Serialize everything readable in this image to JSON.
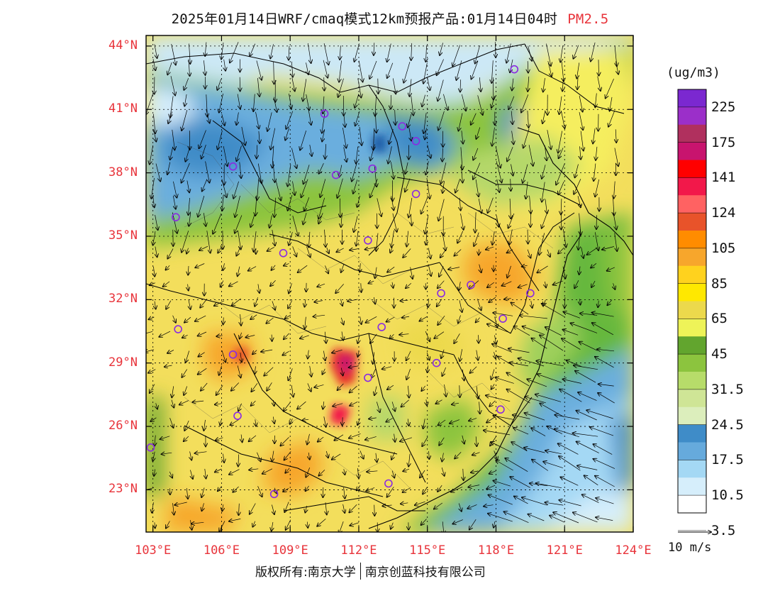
{
  "title": {
    "main": "2025年01月14日WRF/cmaq模式12km预报产品:01月14日04时",
    "pollutant": "PM2.5"
  },
  "map": {
    "lat_ticks": [
      "44°N",
      "41°N",
      "38°N",
      "35°N",
      "32°N",
      "29°N",
      "26°N",
      "23°N"
    ],
    "lon_ticks": [
      "103°E",
      "106°E",
      "109°E",
      "112°E",
      "115°E",
      "118°E",
      "121°E",
      "124°E"
    ],
    "lat_values": [
      44,
      41,
      38,
      35,
      32,
      29,
      26,
      23
    ],
    "lon_values": [
      103,
      106,
      109,
      112,
      115,
      118,
      121,
      124
    ],
    "extent": {
      "lon_min": 102.7,
      "lon_max": 124,
      "lat_min": 21,
      "lat_max": 44.5
    }
  },
  "colorbar": {
    "unit": "(ug/m3)",
    "labels": [
      "225",
      "175",
      "141",
      "124",
      "105",
      "85",
      "65",
      "45",
      "31.5",
      "24.5",
      "17.5",
      "10.5",
      "3.5"
    ],
    "colors": [
      "#7b28d0",
      "#9b2fc9",
      "#b0305e",
      "#c8146e",
      "#ff0000",
      "#f2184a",
      "#ff6262",
      "#e8532a",
      "#ff8c00",
      "#f7a62c",
      "#ffd21e",
      "#ffe800",
      "#ecd94c",
      "#eef358",
      "#62a52e",
      "#8cc43e",
      "#b7dc6a",
      "#cfe596",
      "#dceebc",
      "#3f8cc8",
      "#66aadc",
      "#a4d8f4",
      "#d6eefb",
      "#ffffff"
    ]
  },
  "vector": {
    "label": "10 m/s"
  },
  "cities": [
    {
      "lon": 118.8,
      "lat": 42.9
    },
    {
      "lon": 110.5,
      "lat": 40.8
    },
    {
      "lon": 113.9,
      "lat": 40.2
    },
    {
      "lon": 114.5,
      "lat": 39.5
    },
    {
      "lon": 106.5,
      "lat": 38.3
    },
    {
      "lon": 111.0,
      "lat": 37.9
    },
    {
      "lon": 112.6,
      "lat": 38.2
    },
    {
      "lon": 114.5,
      "lat": 37.0
    },
    {
      "lon": 104.0,
      "lat": 35.9
    },
    {
      "lon": 112.4,
      "lat": 34.8
    },
    {
      "lon": 108.7,
      "lat": 34.2
    },
    {
      "lon": 116.9,
      "lat": 32.7
    },
    {
      "lon": 115.6,
      "lat": 32.3
    },
    {
      "lon": 119.5,
      "lat": 32.3
    },
    {
      "lon": 118.3,
      "lat": 31.1
    },
    {
      "lon": 104.1,
      "lat": 30.6
    },
    {
      "lon": 113.0,
      "lat": 30.7
    },
    {
      "lon": 106.5,
      "lat": 29.4
    },
    {
      "lon": 115.4,
      "lat": 29.0
    },
    {
      "lon": 112.4,
      "lat": 28.3
    },
    {
      "lon": 106.7,
      "lat": 26.5
    },
    {
      "lon": 118.2,
      "lat": 26.8
    },
    {
      "lon": 102.9,
      "lat": 25.0
    },
    {
      "lon": 113.3,
      "lat": 23.3
    },
    {
      "lon": 108.3,
      "lat": 22.8
    }
  ],
  "credits": {
    "left": "版权所有:南京大学",
    "right": "南京创蓝科技有限公司"
  }
}
